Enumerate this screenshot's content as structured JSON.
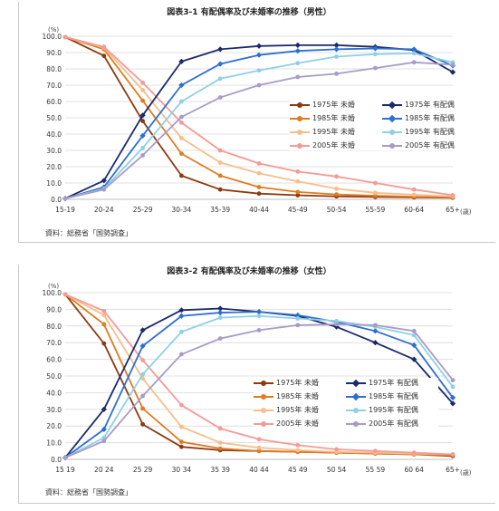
{
  "chart_data": [
    {
      "type": "line",
      "title": "図表3-1 有配偶率及び未婚率の推移（男性）",
      "y_unit": "(%)",
      "x_unit": "(歳)",
      "categories": [
        "15-19",
        "20-24",
        "25-29",
        "30-34",
        "35-39",
        "40-44",
        "45-49",
        "50-54",
        "55-59",
        "60-64",
        "65+"
      ],
      "ylim": [
        0,
        100
      ],
      "yticks": [
        "0.0",
        "10.0",
        "20.0",
        "30.0",
        "40.0",
        "50.0",
        "60.0",
        "70.0",
        "80.0",
        "90.0",
        "100.0"
      ],
      "source": "資料：総務省「国勢調査」",
      "legend_position": "right",
      "series": [
        {
          "name": "1975年 未婚",
          "color": "#8b3a10",
          "marker": "circle",
          "values": [
            99.5,
            88.0,
            48.0,
            14.5,
            6.0,
            3.5,
            2.5,
            1.8,
            1.5,
            1.2,
            1.0
          ]
        },
        {
          "name": "1985年 未婚",
          "color": "#e07b1f",
          "marker": "circle",
          "values": [
            99.5,
            92.0,
            60.5,
            28.0,
            14.5,
            7.5,
            4.5,
            3.0,
            2.2,
            1.6,
            1.2
          ]
        },
        {
          "name": "1995年 未婚",
          "color": "#f7be8a",
          "marker": "circle",
          "values": [
            99.5,
            93.0,
            67.0,
            37.5,
            22.5,
            16.0,
            11.0,
            6.5,
            4.0,
            2.8,
            1.8
          ]
        },
        {
          "name": "2005年 未婚",
          "color": "#f59a96",
          "marker": "circle",
          "values": [
            99.5,
            93.5,
            71.5,
            47.0,
            30.0,
            22.0,
            17.0,
            14.0,
            10.0,
            6.0,
            2.5
          ]
        },
        {
          "name": "1975年 有配偶",
          "color": "#1a2a6c",
          "marker": "diamond",
          "values": [
            0.5,
            11.5,
            51.5,
            84.5,
            92.0,
            94.0,
            94.5,
            94.5,
            93.5,
            91.5,
            78.0
          ]
        },
        {
          "name": "1985年 有配偶",
          "color": "#2e6fcf",
          "marker": "diamond",
          "values": [
            0.5,
            7.5,
            39.0,
            70.0,
            83.0,
            88.5,
            91.0,
            92.0,
            92.5,
            92.0,
            82.0
          ]
        },
        {
          "name": "1995年 有配偶",
          "color": "#8fd0e6",
          "marker": "circle",
          "values": [
            0.5,
            6.5,
            31.5,
            60.0,
            74.0,
            79.0,
            83.5,
            87.5,
            89.0,
            89.5,
            84.0
          ]
        },
        {
          "name": "2005年 有配偶",
          "color": "#a99bc9",
          "marker": "circle",
          "values": [
            0.5,
            6.0,
            27.0,
            50.5,
            62.5,
            70.0,
            75.0,
            77.0,
            80.5,
            84.0,
            82.5
          ]
        }
      ]
    },
    {
      "type": "line",
      "title": "図表3-2 有配偶率及び未婚率の推移（女性）",
      "y_unit": "(%)",
      "x_unit": "(歳)",
      "categories": [
        "15 19",
        "20 24",
        "25 29",
        "30 34",
        "35 39",
        "40 44",
        "45 49",
        "50 54",
        "55 59",
        "60 64",
        "65+"
      ],
      "ylim": [
        0,
        100
      ],
      "yticks": [
        "0.0",
        "10.0",
        "20.0",
        "30.0",
        "40.0",
        "50.0",
        "60.0",
        "70.0",
        "80.0",
        "90.0",
        "100.0"
      ],
      "source": "資料：総務省「国勢調査」",
      "legend_position": "right",
      "series": [
        {
          "name": "1975年 未婚",
          "color": "#8b3a10",
          "marker": "circle",
          "values": [
            99.0,
            69.5,
            21.0,
            7.5,
            5.5,
            5.0,
            4.5,
            4.0,
            3.5,
            3.0,
            2.0
          ]
        },
        {
          "name": "1985年 未婚",
          "color": "#e07b1f",
          "marker": "circle",
          "values": [
            99.0,
            81.0,
            30.5,
            10.5,
            6.5,
            5.0,
            4.5,
            4.0,
            3.5,
            3.0,
            2.5
          ]
        },
        {
          "name": "1995年 未婚",
          "color": "#f7be8a",
          "marker": "circle",
          "values": [
            99.0,
            86.5,
            48.5,
            19.5,
            10.0,
            7.0,
            5.5,
            4.5,
            4.0,
            3.5,
            3.0
          ]
        },
        {
          "name": "2005年 未婚",
          "color": "#f59a96",
          "marker": "circle",
          "values": [
            99.0,
            89.0,
            59.5,
            32.5,
            18.5,
            12.0,
            8.5,
            6.0,
            5.0,
            4.0,
            3.0
          ]
        },
        {
          "name": "1975年 有配偶",
          "color": "#1a2a6c",
          "marker": "diamond",
          "values": [
            1.0,
            30.0,
            77.5,
            89.5,
            90.5,
            88.5,
            86.0,
            79.5,
            70.0,
            60.0,
            33.5
          ]
        },
        {
          "name": "1985年 有配偶",
          "color": "#2e6fcf",
          "marker": "diamond",
          "values": [
            1.0,
            18.0,
            68.0,
            86.0,
            88.0,
            88.5,
            86.5,
            82.5,
            77.0,
            68.5,
            37.0
          ]
        },
        {
          "name": "1995年 有配偶",
          "color": "#8fd0e6",
          "marker": "circle",
          "values": [
            1.0,
            13.0,
            51.0,
            76.5,
            85.0,
            86.0,
            84.5,
            83.0,
            79.5,
            74.5,
            43.5
          ]
        },
        {
          "name": "2005年 有配偶",
          "color": "#a99bc9",
          "marker": "circle",
          "values": [
            1.0,
            11.0,
            38.0,
            63.0,
            72.5,
            77.5,
            80.5,
            81.0,
            80.5,
            77.0,
            47.5
          ]
        }
      ]
    }
  ]
}
